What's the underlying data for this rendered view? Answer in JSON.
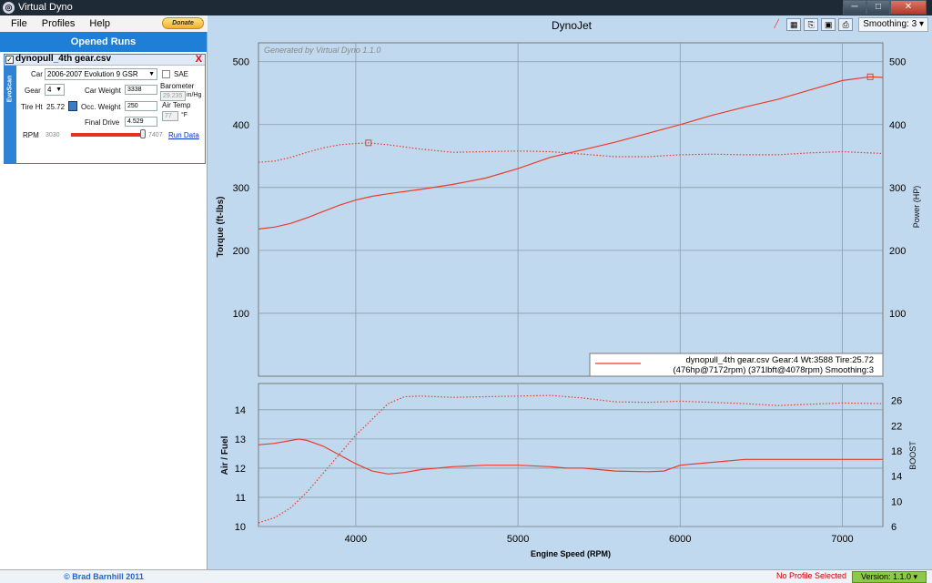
{
  "window": {
    "title": "Virtual Dyno",
    "app_icon": "dyno-icon",
    "buttons": [
      "─",
      "□",
      "✕"
    ]
  },
  "menu": {
    "items": [
      "File",
      "Profiles",
      "Help"
    ],
    "donate": "Donate"
  },
  "sidebar": {
    "header": "Opened Runs",
    "run": {
      "name": "dynopull_4th gear.csv",
      "close": "X",
      "tab_label": "EvoScan",
      "car_label": "Car",
      "car_value": "2006-2007 Evolution 9 GSR",
      "sae_label": "SAE",
      "gear_label": "Gear",
      "gear_value": "4",
      "car_weight_label": "Car Weight",
      "car_weight_value": "3338",
      "barometer_label": "Barometer",
      "barometer_value": "29.235",
      "barometer_unit": "in/Hg",
      "tire_label": "Tire Ht",
      "tire_value": "25.72",
      "occ_weight_label": "Occ. Weight",
      "occ_weight_value": "250",
      "air_temp_label": "Air Temp",
      "air_temp_value": "77",
      "air_temp_unit": "°F",
      "final_drive_label": "Final Drive",
      "final_drive_value": "4.529",
      "rpm_label": "RPM",
      "rpm_min": "3030",
      "rpm_max": "7407",
      "run_data_link": "Run Data"
    },
    "footer": "© Brad Barnhill 2011"
  },
  "toolbar": {
    "smoothing": "Smoothing: 3"
  },
  "status": {
    "profile": "No Profile Selected",
    "version": "Version: 1.1.0"
  },
  "colors": {
    "series": "#ee3a28",
    "plot_bg": "#c1d9ee",
    "accent": "#1f7fd6"
  },
  "chart_data": [
    {
      "type": "line",
      "title": "DynoJet",
      "watermark": "Generated by Virtual Dyno 1.1.0",
      "ylabel": "Torque (ft-lbs)",
      "y2label": "Power (HP)",
      "xlim": [
        3400,
        7250
      ],
      "ylim": [
        0,
        530
      ],
      "yticks": [
        100,
        200,
        300,
        400,
        500
      ],
      "legend": {
        "line1": "dynopull_4th gear.csv Gear:4 Wt:3588 Tire:25.72",
        "line2": "(476hp@7172rpm) (371lbft@4078rpm) Smoothing:3",
        "position": "bottom-right"
      },
      "series": [
        {
          "name": "Power",
          "style": "solid",
          "x": [
            3400,
            3500,
            3600,
            3700,
            3800,
            3900,
            4000,
            4100,
            4200,
            4400,
            4600,
            4800,
            5000,
            5200,
            5400,
            5600,
            5800,
            6000,
            6200,
            6400,
            6600,
            6800,
            7000,
            7172,
            7250
          ],
          "y": [
            234,
            237,
            243,
            252,
            262,
            272,
            280,
            286,
            290,
            297,
            305,
            315,
            330,
            348,
            360,
            372,
            386,
            400,
            415,
            428,
            440,
            455,
            470,
            476,
            475
          ]
        },
        {
          "name": "Torque",
          "style": "dotted",
          "x": [
            3400,
            3500,
            3600,
            3700,
            3800,
            3900,
            4000,
            4078,
            4200,
            4400,
            4600,
            4800,
            5000,
            5200,
            5400,
            5600,
            5800,
            6000,
            6200,
            6400,
            6600,
            6800,
            7000,
            7250
          ],
          "y": [
            340,
            342,
            348,
            356,
            363,
            368,
            370,
            371,
            368,
            361,
            356,
            357,
            358,
            357,
            353,
            349,
            349,
            352,
            353,
            352,
            352,
            355,
            357,
            354
          ]
        }
      ]
    },
    {
      "type": "line",
      "xlabel": "Engine Speed (RPM)",
      "ylabel": "Air / Fuel",
      "y2label": "BOOST",
      "xlim": [
        3400,
        7250
      ],
      "xticks": [
        4000,
        5000,
        6000,
        7000
      ],
      "ylim": [
        10,
        14.9
      ],
      "yticks": [
        10,
        11,
        12,
        13,
        14
      ],
      "y2lim": [
        6,
        28.7
      ],
      "y2ticks": [
        6,
        10,
        14,
        18,
        22,
        26
      ],
      "series": [
        {
          "name": "Air / Fuel",
          "style": "solid",
          "x": [
            3400,
            3500,
            3600,
            3650,
            3700,
            3800,
            3900,
            4000,
            4100,
            4200,
            4300,
            4400,
            4600,
            4800,
            5000,
            5200,
            5300,
            5400,
            5500,
            5600,
            5800,
            5900,
            6000,
            6200,
            6400,
            6600,
            6800,
            7000,
            7250
          ],
          "y": [
            12.8,
            12.85,
            12.95,
            13.0,
            12.95,
            12.75,
            12.45,
            12.15,
            11.9,
            11.8,
            11.85,
            11.95,
            12.05,
            12.1,
            12.1,
            12.05,
            12.0,
            12.0,
            11.95,
            11.9,
            11.88,
            11.9,
            12.1,
            12.2,
            12.3,
            12.3,
            12.3,
            12.3,
            12.3
          ]
        },
        {
          "name": "BOOST",
          "style": "dotted",
          "x": [
            3400,
            3500,
            3600,
            3700,
            3800,
            3900,
            4000,
            4100,
            4200,
            4300,
            4400,
            4600,
            4800,
            5000,
            5200,
            5400,
            5600,
            5800,
            6000,
            6200,
            6400,
            6600,
            6800,
            7000,
            7250
          ],
          "y": [
            6.6,
            7.4,
            9.0,
            11.5,
            14.5,
            17.5,
            20.5,
            23.0,
            25.5,
            26.6,
            26.7,
            26.5,
            26.6,
            26.7,
            26.8,
            26.4,
            25.8,
            25.7,
            25.9,
            25.7,
            25.5,
            25.2,
            25.4,
            25.6,
            25.5
          ]
        }
      ]
    }
  ]
}
